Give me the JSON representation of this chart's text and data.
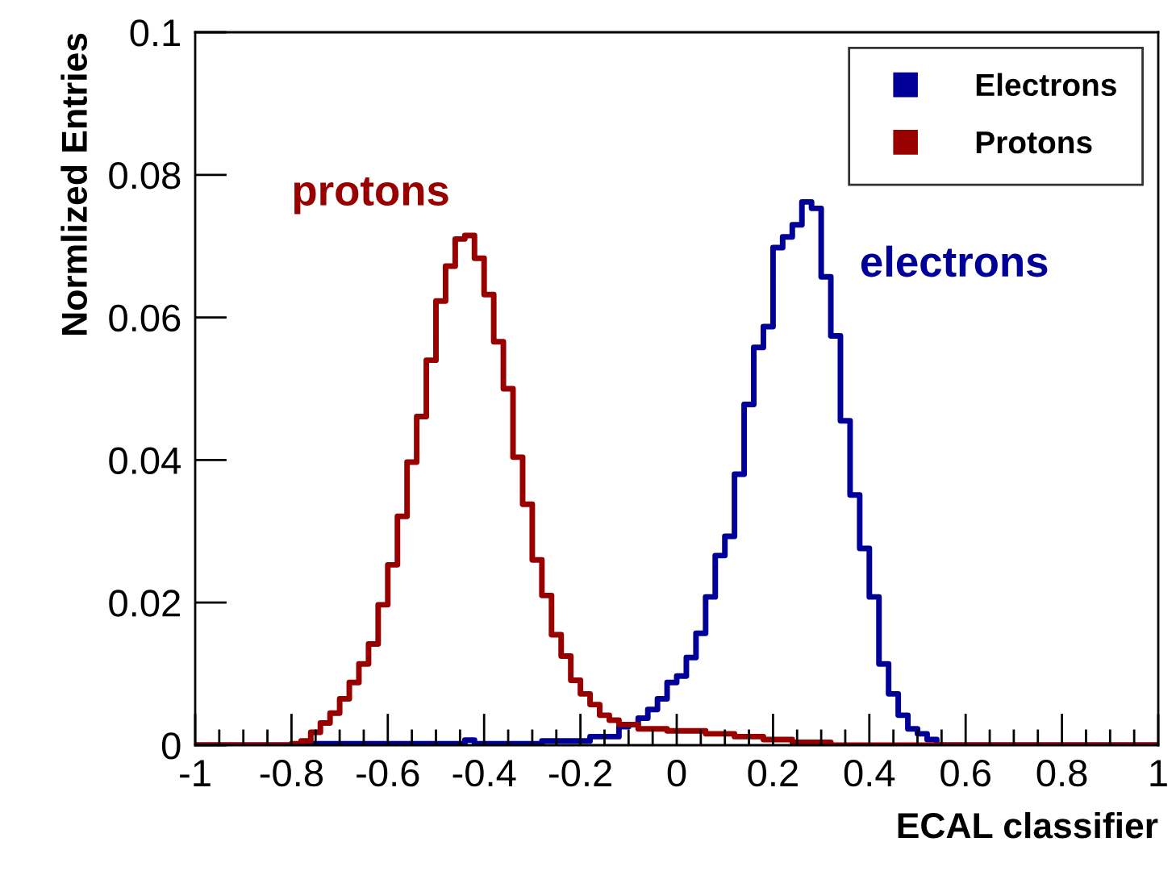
{
  "chart_data": {
    "type": "histogram",
    "xlabel": "ECAL classifier",
    "ylabel": "Normlized Entries",
    "bins": [
      -1.0,
      -0.98,
      -0.96,
      -0.94,
      -0.92,
      -0.9,
      -0.88,
      -0.86,
      -0.84,
      -0.82,
      -0.8,
      -0.78,
      -0.76,
      -0.74,
      -0.72,
      -0.7,
      -0.68,
      -0.66,
      -0.64,
      -0.62,
      -0.6,
      -0.58,
      -0.56,
      -0.54,
      -0.52,
      -0.5,
      -0.48,
      -0.46,
      -0.44,
      -0.42,
      -0.4,
      -0.38,
      -0.36,
      -0.34,
      -0.32,
      -0.3,
      -0.28,
      -0.26,
      -0.24,
      -0.22,
      -0.2,
      -0.18,
      -0.16,
      -0.14,
      -0.12,
      -0.1,
      -0.08,
      -0.06,
      -0.04,
      -0.02,
      0.0,
      0.02,
      0.04,
      0.06,
      0.08,
      0.1,
      0.12,
      0.14,
      0.16,
      0.18,
      0.2,
      0.22,
      0.24,
      0.26,
      0.28,
      0.3,
      0.32,
      0.34,
      0.36,
      0.38,
      0.4,
      0.42,
      0.44,
      0.46,
      0.48,
      0.5,
      0.52,
      0.54,
      0.56,
      0.58,
      0.6,
      0.62,
      0.64,
      0.66,
      0.68,
      0.7,
      0.72,
      0.74,
      0.76,
      0.78,
      0.8,
      0.82,
      0.84,
      0.86,
      0.88,
      0.9,
      0.92,
      0.94,
      0.96,
      0.98,
      1.0
    ],
    "series": [
      {
        "name": "Electrons",
        "color": "#000099",
        "values": [
          0,
          0,
          0,
          0,
          0,
          0,
          0,
          0,
          0,
          0,
          0,
          0.0002,
          0.0002,
          0.0002,
          0.0002,
          0.0002,
          0.0002,
          0.0002,
          0.0002,
          0.0002,
          0.0002,
          0.0002,
          0.0002,
          0.0002,
          0.0002,
          0.0002,
          0.0002,
          0.0002,
          0.0007,
          0.0002,
          0.0002,
          0.0002,
          0.0002,
          0.0002,
          0.0002,
          0.0002,
          0.0006,
          0.0006,
          0.0006,
          0.0006,
          0.0006,
          0.0012,
          0.0012,
          0.0012,
          0.0026,
          0.0029,
          0.0038,
          0.005,
          0.0065,
          0.0088,
          0.0097,
          0.0123,
          0.0157,
          0.0208,
          0.0266,
          0.0293,
          0.038,
          0.0478,
          0.0558,
          0.0587,
          0.0698,
          0.0713,
          0.073,
          0.0762,
          0.0753,
          0.0657,
          0.0574,
          0.0455,
          0.0351,
          0.0276,
          0.0208,
          0.0114,
          0.0072,
          0.0042,
          0.0023,
          0.0016,
          0.0008,
          0,
          0,
          0,
          0,
          0,
          0,
          0,
          0,
          0,
          0,
          0,
          0,
          0,
          0,
          0,
          0,
          0,
          0,
          0,
          0,
          0,
          0,
          0
        ]
      },
      {
        "name": "Protons",
        "color": "#990000",
        "values": [
          0,
          0,
          0,
          0,
          0,
          0,
          0,
          0,
          0,
          0,
          0.0002,
          0.0006,
          0.0018,
          0.0031,
          0.0045,
          0.0065,
          0.0088,
          0.0114,
          0.0142,
          0.0197,
          0.0253,
          0.0321,
          0.0397,
          0.0461,
          0.054,
          0.0623,
          0.0672,
          0.071,
          0.0715,
          0.0683,
          0.0632,
          0.0566,
          0.05,
          0.0404,
          0.0338,
          0.026,
          0.021,
          0.0155,
          0.0125,
          0.0091,
          0.0072,
          0.0057,
          0.0042,
          0.0035,
          0.0029,
          0.0029,
          0.0023,
          0.0023,
          0.0023,
          0.002,
          0.002,
          0.002,
          0.002,
          0.0016,
          0.0016,
          0.0016,
          0.0012,
          0.0012,
          0.0012,
          0.0008,
          0.0008,
          0.0008,
          0.0004,
          0.0004,
          0.0004,
          0.0004,
          0,
          0,
          0,
          0,
          0,
          0,
          0,
          0,
          0,
          0,
          0,
          0,
          0,
          0,
          0,
          0,
          0,
          0,
          0,
          0,
          0,
          0,
          0,
          0,
          0,
          0,
          0,
          0,
          0,
          0,
          0,
          0,
          0,
          0
        ]
      }
    ],
    "xlim": [
      -1,
      1
    ],
    "ylim": [
      0,
      0.1
    ],
    "xticks": [
      -1,
      -0.8,
      -0.6,
      -0.4,
      -0.2,
      0,
      0.2,
      0.4,
      0.6,
      0.8,
      1
    ],
    "yticks": [
      0,
      0.02,
      0.04,
      0.06,
      0.08,
      0.1
    ],
    "annotations": [
      "electrons",
      "protons"
    ],
    "legend": "top right",
    "grid": false
  }
}
